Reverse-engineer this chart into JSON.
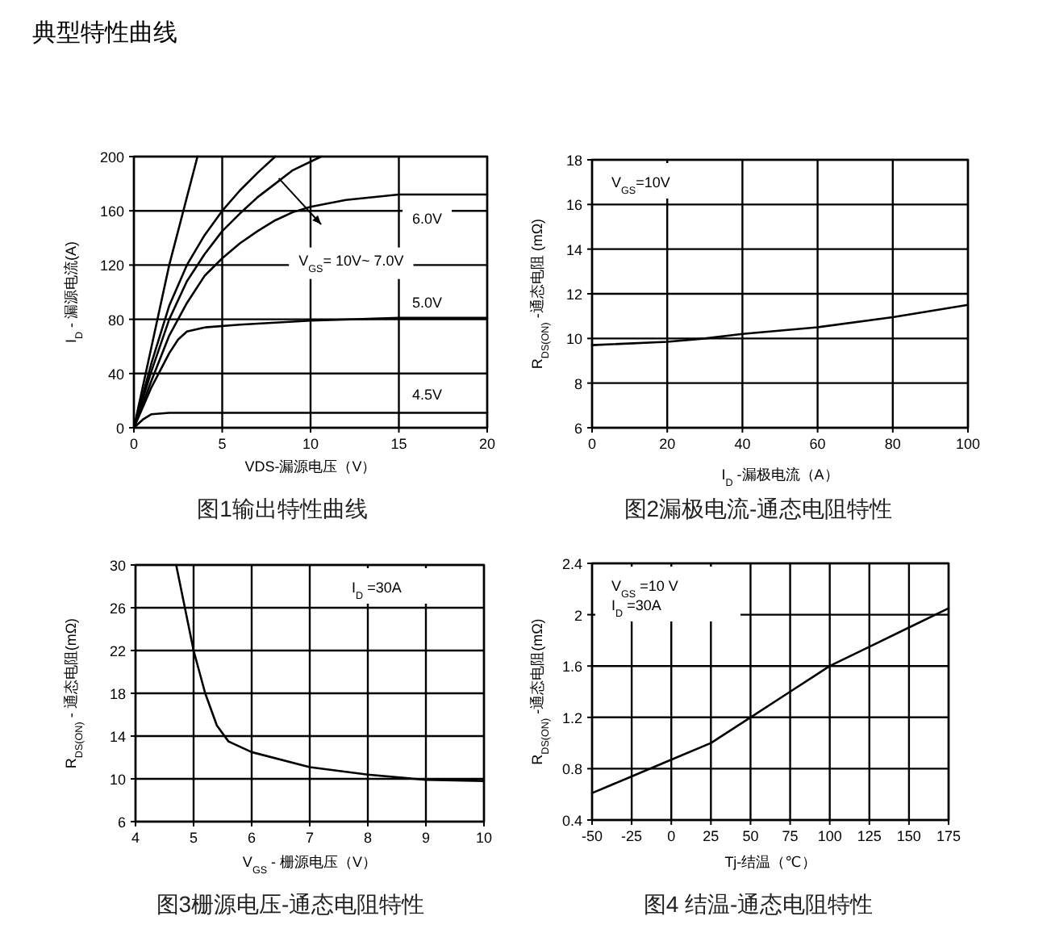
{
  "chart_data": [
    {
      "type": "line",
      "title": "图1输出特性曲线",
      "xlabel": "VDS-漏源电压（V）",
      "ylabel": "I$_{D}$ - 漏源电流(A)",
      "xlim": [
        0,
        20
      ],
      "ylim": [
        0,
        200
      ],
      "xticks": [
        0,
        5,
        10,
        15,
        20
      ],
      "yticks": [
        0,
        40,
        80,
        120,
        160,
        200
      ],
      "grid": true,
      "annotations": [
        "典型特性曲线",
        "6.0V",
        "5.0V",
        "4.5V",
        "V$_{GS}$= 10V~ 7.0V"
      ],
      "series": [
        {
          "color": "#000000",
          "x": [
            0,
            0.5,
            1,
            1.5,
            2,
            2.5,
            3,
            3.6
          ],
          "values": [
            0,
            30,
            60,
            90,
            120,
            145,
            170,
            200
          ]
        },
        {
          "color": "#000000",
          "x": [
            0,
            1,
            2,
            3,
            4,
            5,
            6,
            7,
            8
          ],
          "values": [
            0,
            48,
            90,
            120,
            142,
            160,
            175,
            188,
            200
          ]
        },
        {
          "color": "#000000",
          "x": [
            0,
            1,
            2,
            3,
            4,
            5,
            6,
            7,
            8,
            9,
            10.6
          ],
          "values": [
            0,
            42,
            80,
            108,
            128,
            145,
            158,
            170,
            180,
            190,
            200
          ]
        },
        {
          "color": "#000000",
          "x": [
            0,
            1,
            2,
            3,
            4,
            5,
            6,
            7,
            8,
            9,
            10,
            12,
            15,
            20
          ],
          "values": [
            0,
            35,
            68,
            92,
            112,
            125,
            136,
            145,
            153,
            159,
            163,
            168,
            172,
            172
          ]
        },
        {
          "color": "#000000",
          "x": [
            0,
            1,
            2,
            2.5,
            3,
            4,
            6,
            10,
            15,
            20
          ],
          "values": [
            0,
            30,
            55,
            65,
            71,
            74,
            76,
            79,
            81,
            81
          ]
        },
        {
          "color": "#000000",
          "x": [
            0,
            0.5,
            1,
            2,
            20
          ],
          "values": [
            0,
            6,
            10,
            11,
            11
          ]
        }
      ]
    },
    {
      "type": "line",
      "title": "图2漏极电流-通态电阻特性",
      "xlabel": "I$_{D}$ -漏极电流（A）",
      "ylabel": "R$_{DS(ON)}$ -通态电阻 (mΩ)",
      "xlim": [
        0,
        100
      ],
      "ylim": [
        6,
        18
      ],
      "xticks": [
        0,
        20,
        40,
        60,
        80,
        100
      ],
      "yticks": [
        6,
        8,
        10,
        12,
        14,
        16,
        18
      ],
      "grid": true,
      "annotations": [
        "V$_{GS}$=10V"
      ],
      "series": [
        {
          "color": "#000000",
          "x": [
            0,
            20,
            30,
            40,
            60,
            80,
            100
          ],
          "values": [
            9.7,
            9.85,
            10,
            10.2,
            10.5,
            10.95,
            11.5
          ]
        }
      ]
    },
    {
      "type": "line",
      "title": "图3栅源电压-通态电阻特性",
      "xlabel": "V$_{GS}$ - 栅源电压（V）",
      "ylabel": "R$_{DS(ON)}$ - 通态电阻(mΩ)",
      "xlim": [
        4,
        10
      ],
      "ylim": [
        6,
        30
      ],
      "xticks": [
        4,
        5,
        6,
        7,
        8,
        9,
        10
      ],
      "yticks": [
        6,
        10,
        14,
        18,
        22,
        26,
        30
      ],
      "grid": true,
      "annotations": [
        "I$_{D}$ =30A"
      ],
      "series": [
        {
          "color": "#000000",
          "x": [
            4.7,
            4.85,
            5,
            5.2,
            5.4,
            5.6,
            6,
            7,
            8,
            9,
            10
          ],
          "values": [
            30,
            26,
            22,
            18,
            15,
            13.5,
            12.5,
            11.1,
            10.4,
            9.9,
            9.8
          ]
        }
      ]
    },
    {
      "type": "line",
      "title": "图4 结温-通态电阻特性",
      "xlabel": "Tj-结温（℃）",
      "ylabel": "R$_{DS(ON)}$ -通态电阻(mΩ)",
      "xlim": [
        -50,
        175
      ],
      "ylim": [
        0.4,
        2.4
      ],
      "xticks": [
        -50,
        -25,
        0,
        25,
        50,
        75,
        100,
        125,
        150,
        175
      ],
      "yticks": [
        0.4,
        0.8,
        1.2,
        1.6,
        2,
        2.4
      ],
      "grid": true,
      "annotations": [
        "V$_{GS}$ =10 V",
        "I$_{D}$ =30A"
      ],
      "series": [
        {
          "color": "#000000",
          "x": [
            -50,
            -25,
            0,
            25,
            50,
            75,
            100,
            125,
            150,
            175
          ],
          "values": [
            0.61,
            0.74,
            0.87,
            1.0,
            1.2,
            1.4,
            1.6,
            1.75,
            1.9,
            2.05
          ]
        }
      ]
    }
  ]
}
